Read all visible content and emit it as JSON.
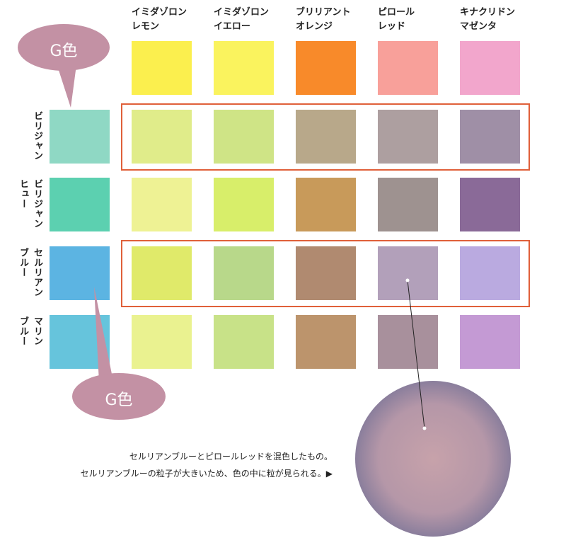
{
  "columns": [
    {
      "lines": [
        "イミダゾロン",
        "レモン"
      ]
    },
    {
      "lines": [
        "イミダゾロン",
        "イエロー"
      ]
    },
    {
      "lines": [
        "ブリリアント",
        "オレンジ"
      ]
    },
    {
      "lines": [
        "ピロール",
        "レッド"
      ]
    },
    {
      "lines": [
        "キナクリドン",
        "マゼンタ"
      ]
    }
  ],
  "rows": [
    {
      "lines": [
        "ビリジャン"
      ]
    },
    {
      "lines": [
        "ビリジャン",
        "ヒュー"
      ]
    },
    {
      "lines": [
        "セルリアン",
        "ブルー"
      ]
    },
    {
      "lines": [
        "マリン",
        "ブルー"
      ]
    }
  ],
  "callouts": [
    "G色",
    "G色"
  ],
  "caption": [
    "セルリアンブルーとピロールレッドを混色したもの。",
    "セルリアンブルーの粒子が大きいため、色の中に粒が見られる。▶"
  ]
}
